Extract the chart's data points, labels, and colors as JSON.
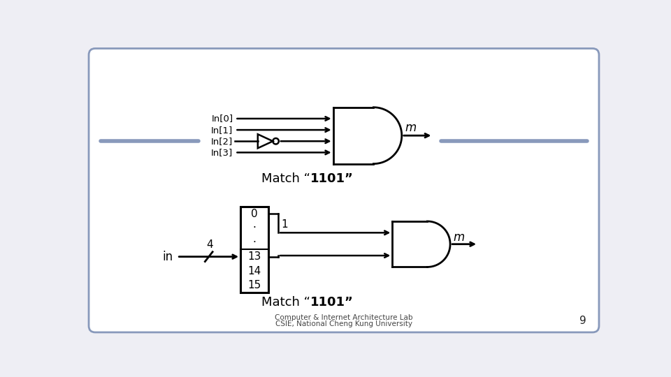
{
  "bg_color": "#eeeef4",
  "slide_bg": "#ffffff",
  "border_color": "#8899bb",
  "text_color": "#000000",
  "footer_line1": "Computer & Internet Architecture Lab",
  "footer_line2": "CSIE, National Cheng Kung University",
  "page_number": "9",
  "top_labels": [
    "In[0]",
    "In[1]",
    "In[2]",
    "In[3]"
  ],
  "m_label": "m",
  "bottom_table_entries": [
    "0",
    "·",
    "·",
    "13",
    "14",
    "15"
  ],
  "in_label": "in",
  "bit_label": "4",
  "one_label": "1"
}
